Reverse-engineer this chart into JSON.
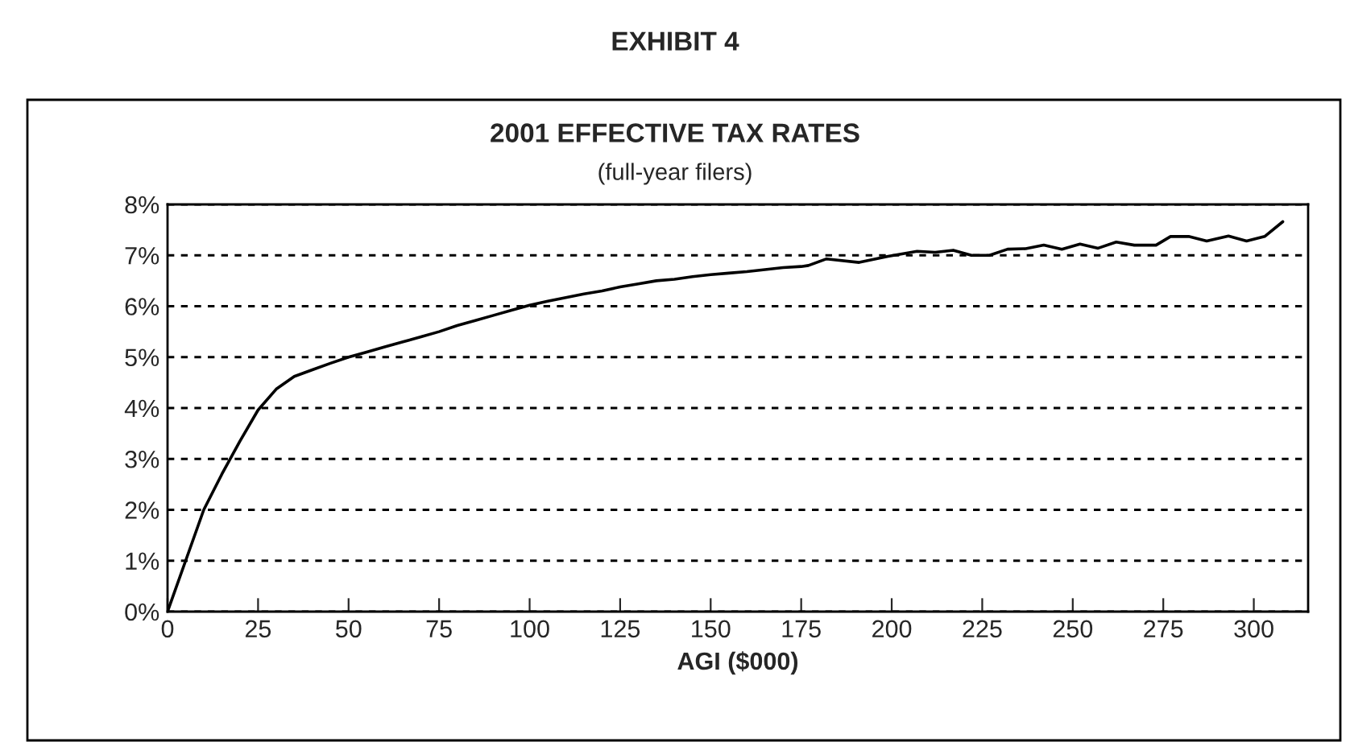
{
  "chart_data": {
    "type": "line",
    "title": "EXHIBIT 4",
    "subtitle": "2001 EFFECTIVE TAX RATES",
    "annotations": [
      "(full-year filers)"
    ],
    "xlabel": "AGI ($000)",
    "x": [
      0,
      5,
      10,
      15,
      20,
      25,
      30,
      35,
      40,
      45,
      50,
      55,
      60,
      65,
      70,
      75,
      80,
      85,
      90,
      95,
      100,
      105,
      110,
      115,
      120,
      125,
      130,
      135,
      140,
      145,
      150,
      155,
      160,
      165,
      170,
      175,
      177,
      182,
      191,
      199,
      207,
      212,
      217,
      222,
      227,
      232,
      237,
      242,
      247,
      252,
      257,
      262,
      267,
      273,
      277,
      282,
      287,
      293,
      298,
      303,
      308
    ],
    "series": [
      {
        "color": "#000000",
        "values": [
          0,
          1,
          2,
          2.7,
          3.35,
          3.96,
          4.37,
          4.62,
          4.75,
          4.88,
          5.0,
          5.1,
          5.2,
          5.3,
          5.4,
          5.5,
          5.62,
          5.72,
          5.82,
          5.92,
          6.02,
          6.1,
          6.17,
          6.24,
          6.3,
          6.38,
          6.44,
          6.5,
          6.53,
          6.58,
          6.62,
          6.65,
          6.68,
          6.72,
          6.76,
          6.78,
          6.8,
          6.93,
          6.86,
          6.98,
          7.08,
          7.06,
          7.1,
          7.0,
          7.0,
          7.12,
          7.13,
          7.2,
          7.12,
          7.22,
          7.14,
          7.26,
          7.2,
          7.2,
          7.37,
          7.37,
          7.28,
          7.38,
          7.28,
          7.37,
          7.66
        ]
      }
    ],
    "xlim": [
      0,
      315
    ],
    "xticks": [
      0,
      25,
      50,
      75,
      100,
      125,
      150,
      175,
      200,
      225,
      250,
      275,
      300
    ],
    "ylim": [
      0,
      8
    ],
    "yticks": [
      {
        "value": 0,
        "label": "0%"
      },
      {
        "value": 1,
        "label": "1%"
      },
      {
        "value": 2,
        "label": "2%"
      },
      {
        "value": 3,
        "label": "3%"
      },
      {
        "value": 4,
        "label": "4%"
      },
      {
        "value": 5,
        "label": "5%"
      },
      {
        "value": 6,
        "label": "6%"
      },
      {
        "value": 7,
        "label": "7%"
      },
      {
        "value": 8,
        "label": "8%"
      }
    ],
    "grid": "y",
    "marker": "none",
    "line_style": "solid",
    "legend": false
  }
}
